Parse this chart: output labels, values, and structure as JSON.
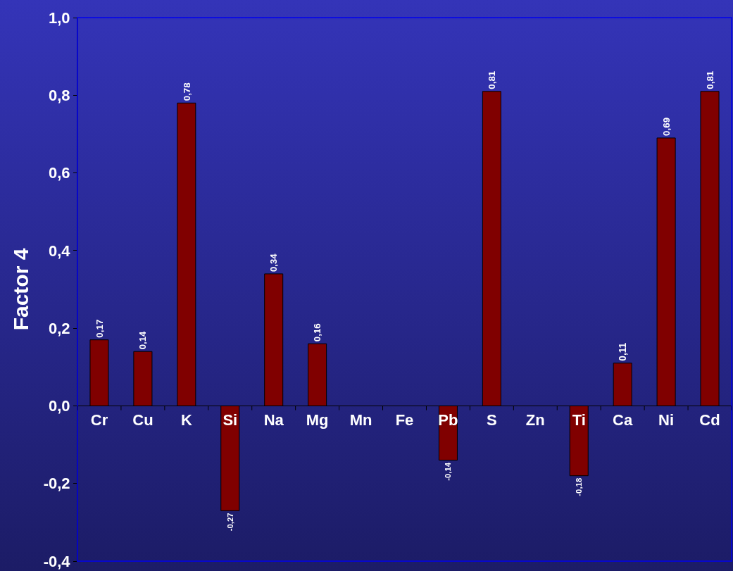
{
  "chart_data": {
    "type": "bar",
    "ylabel": "Factor 4",
    "categories": [
      "Cr",
      "Cu",
      "K",
      "Si",
      "Na",
      "Mg",
      "Mn",
      "Fe",
      "Pb",
      "S",
      "Zn",
      "Ti",
      "Ca",
      "Ni",
      "Cd"
    ],
    "values": [
      0.17,
      0.14,
      0.78,
      -0.27,
      0.34,
      0.16,
      null,
      null,
      -0.14,
      0.81,
      null,
      -0.18,
      0.11,
      0.69,
      0.81
    ],
    "value_labels": [
      "0,17",
      "0,14",
      "0,78",
      "-0,27",
      "0,34",
      "0,16",
      null,
      null,
      "-0,14",
      "0,81",
      null,
      "-0,18",
      "0,11",
      "0,69",
      "0,81"
    ],
    "color": "#800000",
    "ylim": [
      -0.4,
      1.0
    ],
    "yticks": [
      {
        "value": -0.4,
        "label": "-0,4"
      },
      {
        "value": -0.2,
        "label": "-0,2"
      },
      {
        "value": 0,
        "label": "0,0"
      },
      {
        "value": 0.2,
        "label": "0,2"
      },
      {
        "value": 0.4,
        "label": "0,4"
      },
      {
        "value": 0.6,
        "label": "0,6"
      },
      {
        "value": 0.8,
        "label": "0,8"
      },
      {
        "value": 1.0,
        "label": "1,0"
      }
    ],
    "grid": false,
    "legend": false
  }
}
